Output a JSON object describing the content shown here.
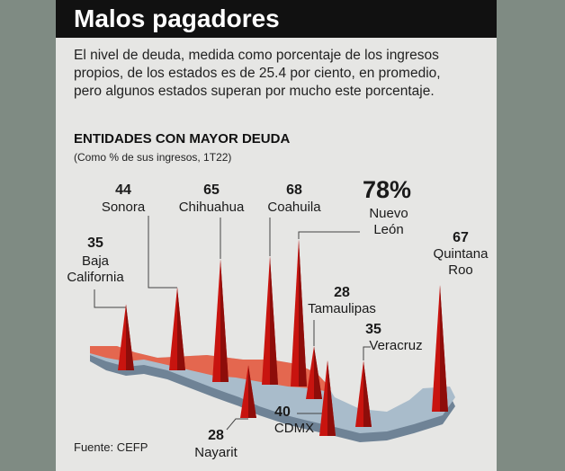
{
  "header": {
    "title": "Malos pagadores"
  },
  "description": "El nivel de deuda, medida como porcentaje de los ingresos propios, de los estados es de 25.4 por ciento, en promedio, pero algunos estados superan por mucho este porcentaje.",
  "source": "Fuente: CEFP",
  "chart_data": {
    "type": "spike",
    "title": "ENTIDADES CON MAYOR DEUDA",
    "subtitle": "(Como % de sus ingresos, 1T22)",
    "categories": [
      "Baja California",
      "Sonora",
      "Chihuahua",
      "Coahuila",
      "Nuevo León",
      "Tamaulipas",
      "Veracruz",
      "Quintana Roo",
      "Nayarit",
      "CDMX"
    ],
    "values": [
      35,
      44,
      65,
      68,
      78,
      28,
      35,
      67,
      28,
      40
    ],
    "value_labels": [
      "35",
      "44",
      "65",
      "68",
      "78%",
      "28",
      "35",
      "67",
      "28",
      "40"
    ],
    "color": "#c8140f"
  }
}
